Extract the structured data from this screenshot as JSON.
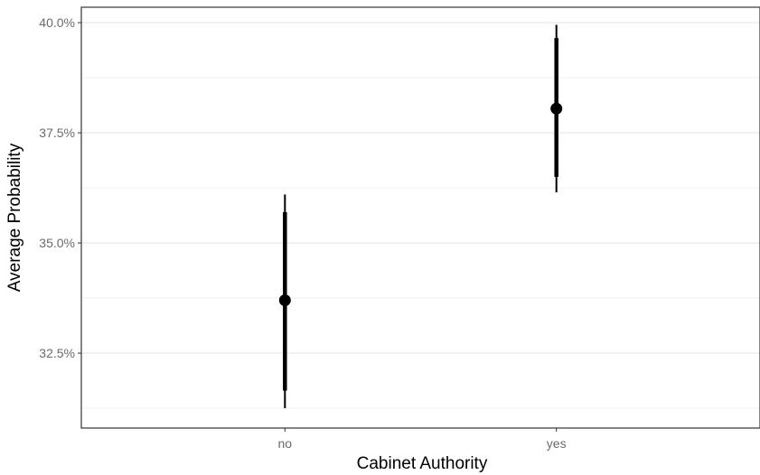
{
  "chart_data": {
    "type": "pointrange",
    "xlabel": "Cabinet Authority",
    "ylabel": "Average Probability",
    "categories": [
      "no",
      "yes"
    ],
    "points": [
      {
        "category": "no",
        "estimate": 33.7,
        "inner": [
          31.65,
          35.7
        ],
        "outer": [
          31.25,
          36.1
        ]
      },
      {
        "category": "yes",
        "estimate": 38.05,
        "inner": [
          36.5,
          39.65
        ],
        "outer": [
          36.15,
          39.95
        ]
      }
    ],
    "yticks": [
      32.5,
      35.0,
      37.5,
      40.0
    ],
    "ytick_labels": [
      "32.5%",
      "35.0%",
      "37.5%",
      "40.0%"
    ],
    "ylim": [
      30.8,
      40.35
    ],
    "grid": true,
    "colors": {
      "marks": "#000000",
      "grid_major": "#e6e6e6",
      "grid_minor": "#f2f2f2",
      "panel_border": "#333333",
      "tick_text": "#6b6b6b"
    }
  }
}
